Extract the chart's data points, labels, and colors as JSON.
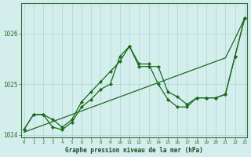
{
  "title": "Graphe pression niveau de la mer (hPa)",
  "x_labels": [
    0,
    1,
    2,
    3,
    4,
    5,
    6,
    7,
    8,
    9,
    10,
    11,
    12,
    13,
    14,
    15,
    16,
    17,
    18,
    19,
    20,
    21,
    22,
    23
  ],
  "line1_x": [
    0,
    1,
    2,
    3,
    4,
    5,
    6,
    7,
    8,
    9,
    10,
    11,
    12,
    13,
    14,
    15,
    16,
    17,
    18,
    19,
    20,
    21,
    22,
    23
  ],
  "line1_y": [
    1024.1,
    1024.4,
    1024.4,
    1024.3,
    1024.15,
    1024.3,
    1024.65,
    1024.85,
    1025.05,
    1025.25,
    1025.45,
    1025.75,
    1025.4,
    1025.4,
    1025.0,
    1024.7,
    1024.55,
    1024.55,
    1024.73,
    1024.73,
    1024.73,
    1024.8,
    1025.55,
    1026.3
  ],
  "line2_x": [
    0,
    1,
    2,
    3,
    4,
    5,
    6,
    7,
    8,
    9,
    10,
    11,
    12,
    13,
    14,
    15,
    16,
    17,
    18,
    19,
    20,
    21,
    22,
    23
  ],
  "line2_y": [
    1024.1,
    1024.4,
    1024.4,
    1024.15,
    1024.1,
    1024.25,
    1024.55,
    1024.7,
    1024.9,
    1025.0,
    1025.55,
    1025.75,
    1025.35,
    1025.35,
    1025.35,
    1024.85,
    1024.75,
    1024.6,
    1024.73,
    1024.73,
    1024.73,
    1024.8,
    1025.55,
    1026.3
  ],
  "line3_x": [
    0,
    1,
    2,
    3,
    4,
    5,
    6,
    7,
    8,
    9,
    10,
    11,
    12,
    13,
    14,
    15,
    16,
    17,
    18,
    19,
    20,
    21,
    22,
    23
  ],
  "line3_y": [
    1024.05,
    1024.12,
    1024.19,
    1024.26,
    1024.33,
    1024.4,
    1024.47,
    1024.54,
    1024.61,
    1024.68,
    1024.75,
    1024.82,
    1024.89,
    1024.96,
    1025.03,
    1025.1,
    1025.17,
    1025.24,
    1025.31,
    1025.38,
    1025.45,
    1025.52,
    1025.9,
    1026.3
  ],
  "line_color": "#1a6b1a",
  "bg_color": "#d4eeee",
  "grid_color": "#b0d4d4",
  "axis_color": "#2d6e2d",
  "text_color": "#1a4a1a",
  "ylim_min": 1023.95,
  "ylim_max": 1026.6,
  "yticks": [
    1024,
    1025,
    1026
  ],
  "marker": "D",
  "marker_size": 2.2,
  "line_width": 0.9
}
